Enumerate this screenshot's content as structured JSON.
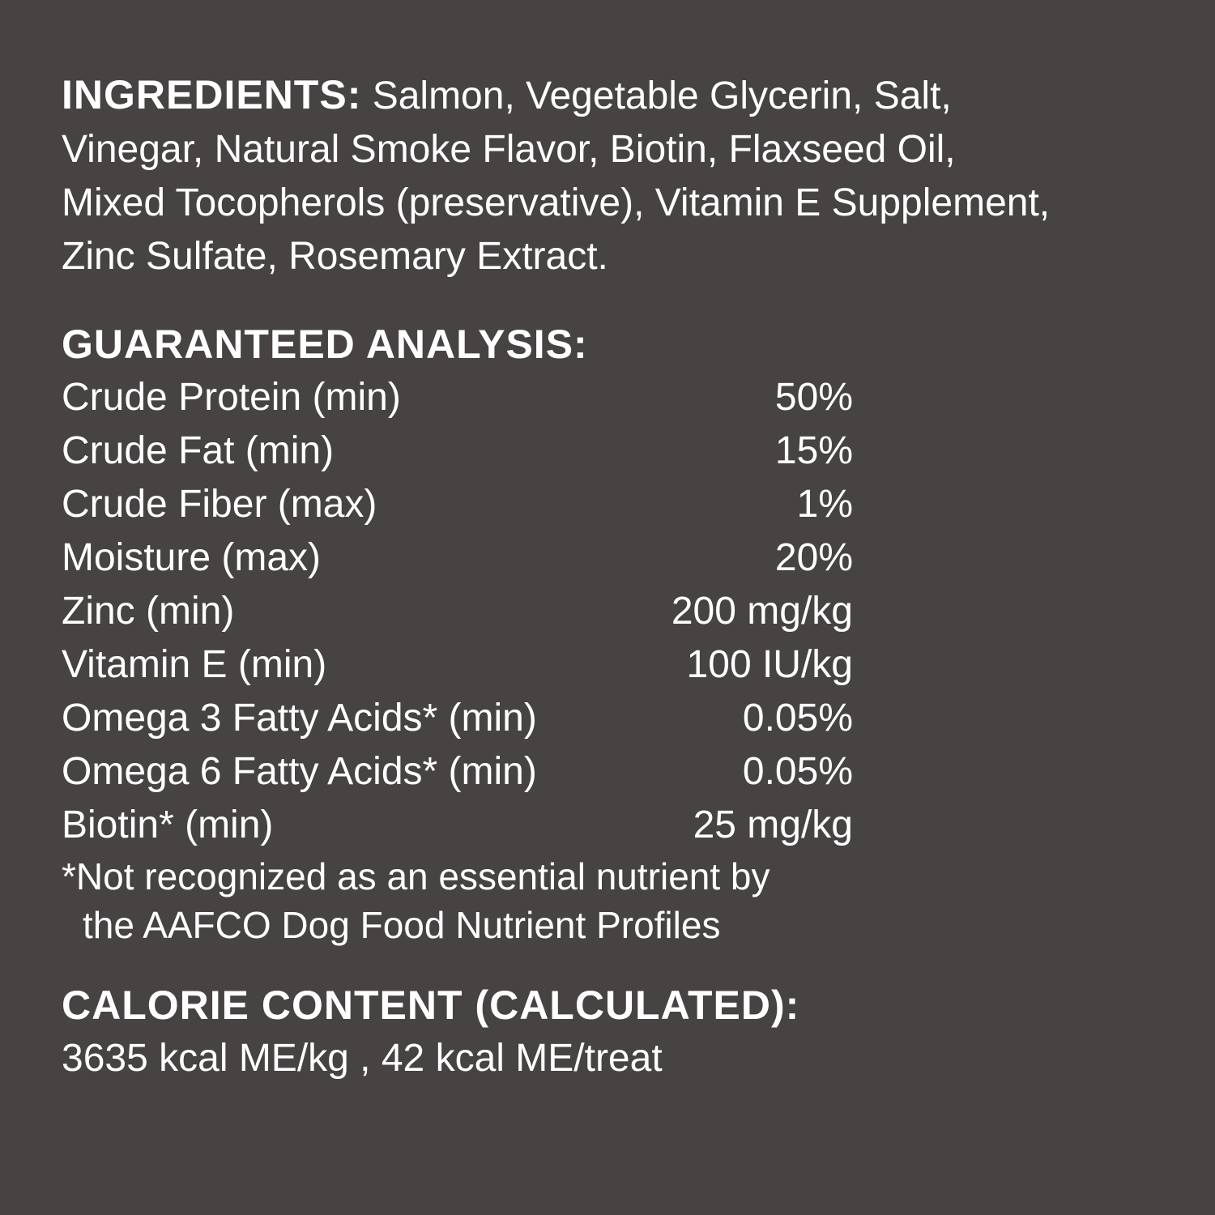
{
  "ingredients": {
    "heading": "INGREDIENTS:",
    "lines": [
      " Salmon, Vegetable Glycerin, Salt,",
      "Vinegar, Natural Smoke Flavor, Biotin, Flaxseed Oil,",
      "Mixed Tocopherols (preservative), Vitamin E Supplement,",
      "Zinc Sulfate, Rosemary Extract."
    ]
  },
  "analysis": {
    "heading": "GUARANTEED ANALYSIS:",
    "rows": [
      {
        "label": "Crude Protein (min)",
        "value": "50%"
      },
      {
        "label": "Crude Fat (min)",
        "value": "15%"
      },
      {
        "label": "Crude Fiber (max)",
        "value": "1%"
      },
      {
        "label": "Moisture (max)",
        "value": "20%"
      },
      {
        "label": "Zinc (min)",
        "value": "200 mg/kg"
      },
      {
        "label": "Vitamin E (min)",
        "value": "100 IU/kg"
      },
      {
        "label": "Omega 3 Fatty Acids* (min)",
        "value": "0.05%"
      },
      {
        "label": "Omega 6 Fatty Acids* (min)",
        "value": "0.05%"
      },
      {
        "label": "Biotin* (min)",
        "value": "25 mg/kg"
      }
    ],
    "footnote": [
      "*Not recognized as an essential nutrient by",
      "the AAFCO Dog Food Nutrient Profiles"
    ]
  },
  "calorie": {
    "heading": "CALORIE CONTENT (CALCULATED):",
    "value": "3635 kcal ME/kg , 42 kcal ME/treat"
  }
}
